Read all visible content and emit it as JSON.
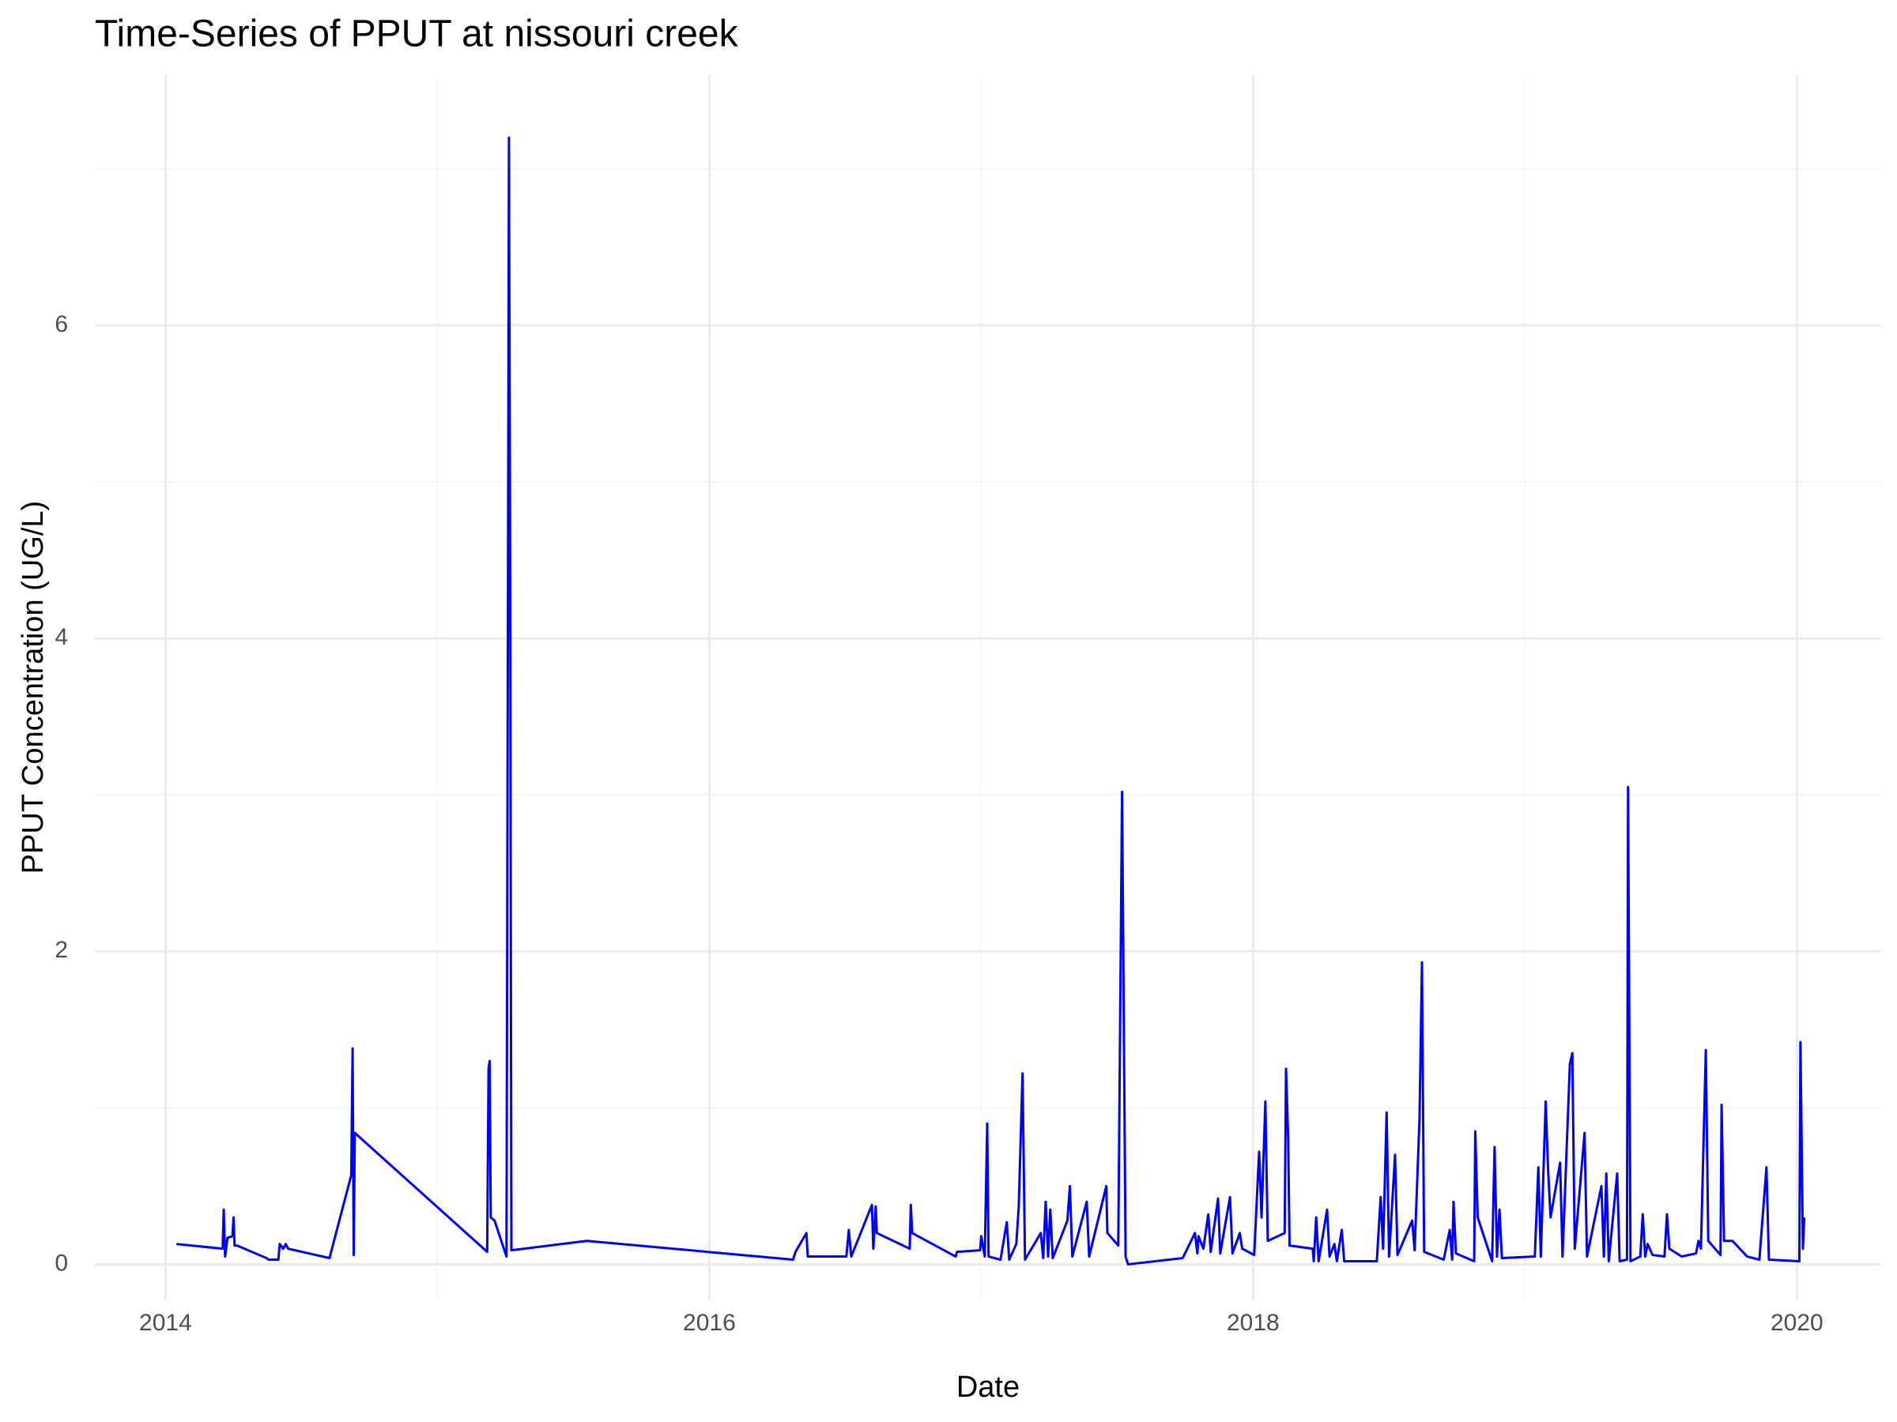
{
  "chart_data": {
    "type": "line",
    "title": "Time-Series of PPUT at nissouri creek",
    "x_label": "Date",
    "y_label": "PPUT Concentration (UG/L)",
    "grid": true,
    "xlim": [
      2013.74,
      2020.31
    ],
    "xticks": [
      2014,
      2016,
      2018,
      2020
    ],
    "ylim": [
      -0.23,
      7.6
    ],
    "yticks": [
      0,
      2,
      4,
      6
    ],
    "x": [
      2014.04,
      2014.21,
      2014.214,
      2014.219,
      2014.228,
      2014.246,
      2014.25,
      2014.254,
      2014.263,
      2014.371,
      2014.379,
      2014.415,
      2014.42,
      2014.433,
      2014.442,
      2014.451,
      2014.603,
      2014.683,
      2014.688,
      2014.692,
      2014.696,
      2015.183,
      2015.188,
      2015.192,
      2015.196,
      2015.21,
      2015.254,
      2015.263,
      2015.268,
      2015.272,
      2015.549,
      2016.308,
      2016.317,
      2016.357,
      2016.362,
      2016.504,
      2016.513,
      2016.522,
      2016.598,
      2016.603,
      2016.612,
      2016.616,
      2016.737,
      2016.741,
      2016.746,
      2016.906,
      2016.911,
      2016.996,
      2017.0,
      2017.013,
      2017.022,
      2017.027,
      2017.071,
      2017.094,
      2017.103,
      2017.129,
      2017.138,
      2017.152,
      2017.161,
      2017.219,
      2017.228,
      2017.237,
      2017.246,
      2017.254,
      2017.263,
      2017.317,
      2017.326,
      2017.335,
      2017.388,
      2017.397,
      2017.46,
      2017.464,
      2017.504,
      2017.518,
      2017.531,
      2017.54,
      2017.741,
      2017.786,
      2017.795,
      2017.799,
      2017.817,
      2017.835,
      2017.844,
      2017.871,
      2017.879,
      2017.915,
      2017.924,
      2017.951,
      2017.96,
      2018.004,
      2018.022,
      2018.031,
      2018.045,
      2018.054,
      2018.116,
      2018.121,
      2018.129,
      2018.134,
      2018.219,
      2018.223,
      2018.232,
      2018.241,
      2018.272,
      2018.281,
      2018.299,
      2018.308,
      2018.326,
      2018.335,
      2018.455,
      2018.469,
      2018.478,
      2018.491,
      2018.5,
      2018.522,
      2018.531,
      2018.585,
      2018.594,
      2018.612,
      2018.621,
      2018.629,
      2018.701,
      2018.723,
      2018.732,
      2018.737,
      2018.746,
      2018.813,
      2018.817,
      2018.826,
      2018.879,
      2018.888,
      2018.897,
      2018.906,
      2018.915,
      2019.036,
      2019.049,
      2019.058,
      2019.076,
      2019.085,
      2019.094,
      2019.129,
      2019.138,
      2019.165,
      2019.174,
      2019.183,
      2019.219,
      2019.228,
      2019.281,
      2019.29,
      2019.299,
      2019.308,
      2019.339,
      2019.348,
      2019.375,
      2019.379,
      2019.388,
      2019.424,
      2019.433,
      2019.442,
      2019.451,
      2019.469,
      2019.513,
      2019.522,
      2019.531,
      2019.576,
      2019.629,
      2019.638,
      2019.647,
      2019.665,
      2019.674,
      2019.719,
      2019.723,
      2019.732,
      2019.763,
      2019.817,
      2019.862,
      2019.888,
      2019.897,
      2020.009,
      2020.013,
      2020.022,
      2020.027
    ],
    "series": [
      {
        "name": "PPUT",
        "color": "#0000ff",
        "values": [
          0.13,
          0.1,
          0.35,
          0.05,
          0.17,
          0.18,
          0.3,
          0.12,
          0.12,
          0.04,
          0.03,
          0.03,
          0.13,
          0.1,
          0.13,
          0.1,
          0.04,
          0.57,
          1.38,
          0.06,
          0.84,
          0.08,
          1.25,
          1.3,
          0.3,
          0.28,
          0.05,
          7.2,
          4.0,
          0.09,
          0.15,
          0.03,
          0.08,
          0.2,
          0.05,
          0.05,
          0.22,
          0.05,
          0.38,
          0.1,
          0.37,
          0.2,
          0.1,
          0.38,
          0.2,
          0.05,
          0.08,
          0.09,
          0.18,
          0.05,
          0.9,
          0.05,
          0.03,
          0.27,
          0.03,
          0.13,
          0.37,
          1.22,
          0.03,
          0.2,
          0.04,
          0.4,
          0.05,
          0.35,
          0.04,
          0.28,
          0.5,
          0.05,
          0.4,
          0.05,
          0.5,
          0.2,
          0.12,
          3.02,
          0.05,
          0.0,
          0.04,
          0.2,
          0.07,
          0.18,
          0.1,
          0.32,
          0.08,
          0.42,
          0.07,
          0.43,
          0.07,
          0.2,
          0.1,
          0.06,
          0.72,
          0.3,
          1.04,
          0.15,
          0.2,
          1.25,
          0.8,
          0.12,
          0.1,
          0.02,
          0.3,
          0.02,
          0.35,
          0.05,
          0.13,
          0.02,
          0.22,
          0.02,
          0.02,
          0.43,
          0.1,
          0.97,
          0.05,
          0.7,
          0.06,
          0.28,
          0.09,
          0.93,
          1.93,
          0.08,
          0.03,
          0.22,
          0.03,
          0.4,
          0.07,
          0.02,
          0.85,
          0.3,
          0.02,
          0.75,
          0.05,
          0.35,
          0.04,
          0.05,
          0.62,
          0.05,
          1.04,
          0.6,
          0.3,
          0.65,
          0.05,
          1.28,
          1.35,
          0.1,
          0.84,
          0.05,
          0.5,
          0.05,
          0.58,
          0.02,
          0.58,
          0.02,
          0.03,
          3.05,
          0.02,
          0.05,
          0.32,
          0.05,
          0.13,
          0.06,
          0.05,
          0.32,
          0.1,
          0.05,
          0.07,
          0.15,
          0.1,
          1.37,
          0.15,
          0.06,
          1.02,
          0.15,
          0.15,
          0.05,
          0.03,
          0.62,
          0.03,
          0.02,
          1.42,
          0.1,
          0.3
        ]
      }
    ]
  }
}
